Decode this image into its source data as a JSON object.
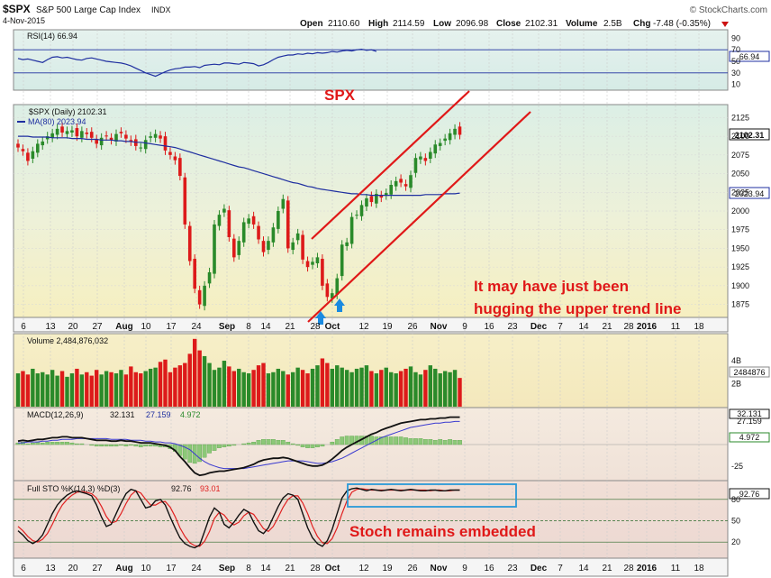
{
  "header": {
    "ticker": "$SPX",
    "name": "S&P 500 Large Cap Index",
    "exchange": "INDX",
    "date": "4-Nov-2015",
    "open_label": "Open",
    "open": "2110.60",
    "high_label": "High",
    "high": "2114.59",
    "low_label": "Low",
    "low": "2096.98",
    "close_label": "Close",
    "close": "2102.31",
    "volume_label": "Volume",
    "volume": "2.5B",
    "chg_label": "Chg",
    "chg": "-7.48 (-0.35%)",
    "brand": "© StockCharts.com"
  },
  "colors": {
    "up": "#2a8a2a",
    "down": "#dd1a1a",
    "ma": "#1f2fa0",
    "annotation": "#e01818",
    "stoch_k": "#111111",
    "stoch_d": "#e02020",
    "box": "#2a9ad8"
  },
  "annotations": {
    "spx": "SPX",
    "trend_line_1": "It may have just been",
    "trend_line_2": "hugging the upper trend line",
    "stoch": "Stoch remains embedded"
  },
  "chart_data": [
    {
      "type": "line",
      "panel": "rsi",
      "legend": "RSI(14) 66.94",
      "last_value": "66.94",
      "yticks": [
        "90",
        "70",
        "50",
        "30",
        "10"
      ],
      "ylim": [
        0,
        100
      ],
      "levels": [
        70,
        30
      ],
      "values": [
        55,
        53,
        54,
        52,
        50,
        48,
        53,
        57,
        58,
        56,
        57,
        55,
        53,
        52,
        55,
        56,
        54,
        52,
        50,
        49,
        48,
        47,
        45,
        42,
        38,
        34,
        30,
        27,
        24,
        28,
        32,
        35,
        37,
        38,
        40,
        40,
        41,
        39,
        43,
        44,
        45,
        44,
        47,
        47,
        46,
        45,
        48,
        47,
        46,
        42,
        44,
        48,
        53,
        57,
        59,
        61,
        61,
        63,
        62,
        64,
        63,
        65,
        64,
        65,
        67,
        66,
        68,
        69,
        68,
        70,
        71,
        69,
        70,
        67
      ]
    },
    {
      "type": "candlestick",
      "panel": "price",
      "legend": "$SPX (Daily) 2102.31",
      "ma_legend": "MA(80) 2023.94",
      "last_close_label": "2102.31",
      "ma_last_label": "2023.94",
      "ylim": [
        1860,
        2140
      ],
      "yticks": [
        "2125",
        "2100",
        "2075",
        "2050",
        "2025",
        "2000",
        "1975",
        "1950",
        "1925",
        "1900",
        "1875"
      ],
      "x_labels": [
        "6",
        "13",
        "20",
        "27",
        "Aug",
        "10",
        "17",
        "24",
        "Sep",
        "8",
        "14",
        "21",
        "28",
        "Oct",
        "12",
        "19",
        "26",
        "Nov",
        "9",
        "16",
        "23",
        "Dec",
        "7",
        "14",
        "21",
        "28",
        "2016",
        "11",
        "18"
      ],
      "close": [
        2085,
        2080,
        2067,
        2080,
        2090,
        2093,
        2100,
        2104,
        2110,
        2105,
        2107,
        2108,
        2100,
        2107,
        2103,
        2098,
        2090,
        2098,
        2100,
        2095,
        2103,
        2104,
        2097,
        2093,
        2087,
        2085,
        2095,
        2100,
        2103,
        2097,
        2081,
        2075,
        2068,
        2047,
        1982,
        1933,
        1896,
        1875,
        1900,
        1918,
        1982,
        1995,
        2003,
        1965,
        1938,
        1960,
        1985,
        1990,
        1982,
        1962,
        1945,
        1960,
        1978,
        2000,
        2016,
        1950,
        1958,
        1970,
        1935,
        1925,
        1932,
        1938,
        1900,
        1885,
        1890,
        1910,
        1955,
        1958,
        1992,
        1995,
        2008,
        2017,
        2012,
        2023,
        2018,
        2024,
        2035,
        2040,
        2038,
        2033,
        2048,
        2071,
        2073,
        2067,
        2079,
        2089,
        2091,
        2097,
        2104,
        2110,
        2102
      ],
      "ma_values": [
        2100,
        2100,
        2100,
        2099,
        2099,
        2099,
        2099,
        2098,
        2098,
        2098,
        2098,
        2097,
        2097,
        2097,
        2096,
        2096,
        2096,
        2095,
        2095,
        2095,
        2094,
        2094,
        2093,
        2093,
        2092,
        2092,
        2091,
        2090,
        2089,
        2088,
        2087,
        2086,
        2085,
        2083,
        2081,
        2079,
        2077,
        2075,
        2073,
        2071,
        2069,
        2067,
        2065,
        2063,
        2061,
        2059,
        2058,
        2056,
        2054,
        2052,
        2050,
        2048,
        2046,
        2044,
        2042,
        2040,
        2038,
        2037,
        2035,
        2033,
        2032,
        2030,
        2029,
        2028,
        2027,
        2026,
        2025,
        2024,
        2023,
        2023,
        2022,
        2022,
        2021,
        2021,
        2021,
        2021,
        2021,
        2021,
        2021,
        2021,
        2021,
        2021,
        2021,
        2022,
        2022,
        2022,
        2022,
        2023,
        2023,
        2023,
        2024
      ]
    },
    {
      "type": "bar",
      "panel": "volume",
      "legend": "Volume 2,484,876,032",
      "last_value": "2484876",
      "yticks": [
        "4B",
        "2B"
      ],
      "ylim": [
        0,
        5000000000
      ],
      "values": [
        2.9,
        3.1,
        2.8,
        3.3,
        2.9,
        3.0,
        2.8,
        3.2,
        2.7,
        3.1,
        2.6,
        2.9,
        3.3,
        2.8,
        3.0,
        2.7,
        3.2,
        2.8,
        3.1,
        3.0,
        2.9,
        3.2,
        2.8,
        3.5,
        3.0,
        2.9,
        3.1,
        3.3,
        3.4,
        3.9,
        4.1,
        3.0,
        3.4,
        3.6,
        3.8,
        4.6,
        5.9,
        4.9,
        4.4,
        3.8,
        3.2,
        3.4,
        4.0,
        3.5,
        3.1,
        3.3,
        3.0,
        2.9,
        3.2,
        3.6,
        3.8,
        2.9,
        3.0,
        3.3,
        3.1,
        2.8,
        3.0,
        3.4,
        3.2,
        2.9,
        3.3,
        3.6,
        4.2,
        3.8,
        3.3,
        3.6,
        3.4,
        3.2,
        3.0,
        3.3,
        3.4,
        3.6,
        3.1,
        2.9,
        3.2,
        3.4,
        3.0,
        2.9,
        3.1,
        3.3,
        3.5,
        3.0,
        2.8,
        3.2,
        3.6,
        3.3,
        2.9,
        3.1,
        3.0,
        3.2,
        2.5
      ]
    },
    {
      "type": "line",
      "panel": "macd",
      "legend_name": "MACD(12,26,9)",
      "legend_values": [
        "32.131",
        "27.159",
        "4.972"
      ],
      "last_macd": "32.131",
      "last_signal": "27.159",
      "last_hist": "4.972",
      "yticks": [
        "-25"
      ],
      "ylim": [
        -40,
        40
      ],
      "macd": [
        4,
        5,
        4,
        5,
        6,
        6,
        7,
        8,
        8,
        9,
        9,
        8,
        8,
        8,
        7,
        6,
        5,
        5,
        5,
        4,
        4,
        5,
        4,
        4,
        3,
        2,
        2,
        2,
        1,
        0,
        -1,
        -3,
        -7,
        -14,
        -20,
        -27,
        -33,
        -36,
        -35,
        -33,
        -32,
        -31,
        -31,
        -30,
        -29,
        -28,
        -27,
        -25,
        -23,
        -20,
        -18,
        -17,
        -16,
        -16,
        -15,
        -16,
        -18,
        -20,
        -22,
        -24,
        -25,
        -25,
        -24,
        -21,
        -17,
        -12,
        -7,
        -3,
        0,
        3,
        6,
        9,
        12,
        14,
        17,
        19,
        21,
        23,
        25,
        26,
        27,
        28,
        29,
        29,
        30,
        30,
        31,
        31,
        32,
        32,
        32
      ],
      "signal": [
        2,
        2,
        3,
        3,
        3,
        4,
        4,
        5,
        5,
        6,
        6,
        6,
        7,
        7,
        7,
        7,
        7,
        7,
        7,
        6,
        6,
        6,
        6,
        5,
        5,
        5,
        4,
        4,
        3,
        3,
        2,
        2,
        1,
        -1,
        -3,
        -6,
        -11,
        -16,
        -20,
        -23,
        -25,
        -27,
        -28,
        -28,
        -28,
        -28,
        -28,
        -27,
        -26,
        -25,
        -24,
        -23,
        -22,
        -21,
        -20,
        -19,
        -19,
        -19,
        -19,
        -20,
        -21,
        -22,
        -22,
        -21,
        -20,
        -18,
        -16,
        -13,
        -10,
        -7,
        -4,
        -1,
        2,
        5,
        8,
        10,
        12,
        14,
        16,
        18,
        20,
        21,
        22,
        23,
        24,
        25,
        25,
        26,
        26,
        27,
        27
      ],
      "histogram": [
        2,
        3,
        1,
        2,
        3,
        2,
        3,
        3,
        3,
        3,
        3,
        2,
        1,
        1,
        0,
        -1,
        -2,
        -2,
        -2,
        -2,
        -2,
        -1,
        -2,
        -1,
        -2,
        -3,
        -2,
        -2,
        -2,
        -3,
        -3,
        -5,
        -8,
        -13,
        -17,
        -21,
        -22,
        -20,
        -15,
        -10,
        -7,
        -4,
        -3,
        -2,
        -1,
        0,
        1,
        2,
        3,
        5,
        6,
        6,
        6,
        5,
        5,
        3,
        1,
        -1,
        -3,
        -4,
        -4,
        -3,
        -2,
        0,
        3,
        6,
        9,
        10,
        10,
        10,
        10,
        10,
        10,
        9,
        9,
        9,
        9,
        9,
        9,
        8,
        7,
        7,
        7,
        6,
        6,
        5,
        6,
        5,
        6,
        5,
        5
      ]
    },
    {
      "type": "line",
      "panel": "stochastic",
      "legend_name": "Full STO %K(14,3) %D(3)",
      "legend_values": [
        "92.76",
        "93.01"
      ],
      "last_k": "92.76",
      "yticks": [
        "80",
        "50",
        "20"
      ],
      "ylim": [
        0,
        100
      ],
      "levels": [
        80,
        50,
        20
      ],
      "k": [
        36,
        30,
        22,
        18,
        22,
        30,
        45,
        60,
        72,
        80,
        86,
        90,
        92,
        90,
        88,
        85,
        72,
        55,
        42,
        45,
        60,
        75,
        88,
        94,
        92,
        80,
        68,
        70,
        78,
        80,
        72,
        55,
        40,
        26,
        18,
        14,
        12,
        16,
        35,
        55,
        68,
        62,
        45,
        40,
        48,
        58,
        66,
        62,
        48,
        36,
        32,
        40,
        55,
        70,
        82,
        88,
        86,
        80,
        60,
        40,
        26,
        18,
        14,
        22,
        38,
        60,
        82,
        92,
        95,
        96,
        94,
        92,
        94,
        93,
        92,
        93,
        94,
        93,
        92,
        93,
        94,
        93,
        92,
        92,
        93,
        93,
        92,
        92,
        93,
        93,
        93
      ],
      "d": [
        42,
        36,
        28,
        22,
        20,
        24,
        32,
        45,
        60,
        72,
        80,
        86,
        90,
        91,
        90,
        88,
        82,
        70,
        56,
        47,
        49,
        60,
        74,
        86,
        92,
        89,
        80,
        72,
        72,
        76,
        77,
        69,
        56,
        40,
        28,
        19,
        15,
        14,
        21,
        35,
        53,
        62,
        58,
        49,
        44,
        48,
        57,
        62,
        59,
        49,
        39,
        35,
        42,
        55,
        69,
        80,
        85,
        85,
        75,
        60,
        42,
        28,
        19,
        18,
        25,
        40,
        60,
        78,
        90,
        94,
        95,
        94,
        93,
        93,
        93,
        93,
        93,
        93,
        93,
        93,
        93,
        93,
        93,
        93,
        92,
        93,
        93,
        92,
        92,
        93,
        93
      ]
    }
  ]
}
